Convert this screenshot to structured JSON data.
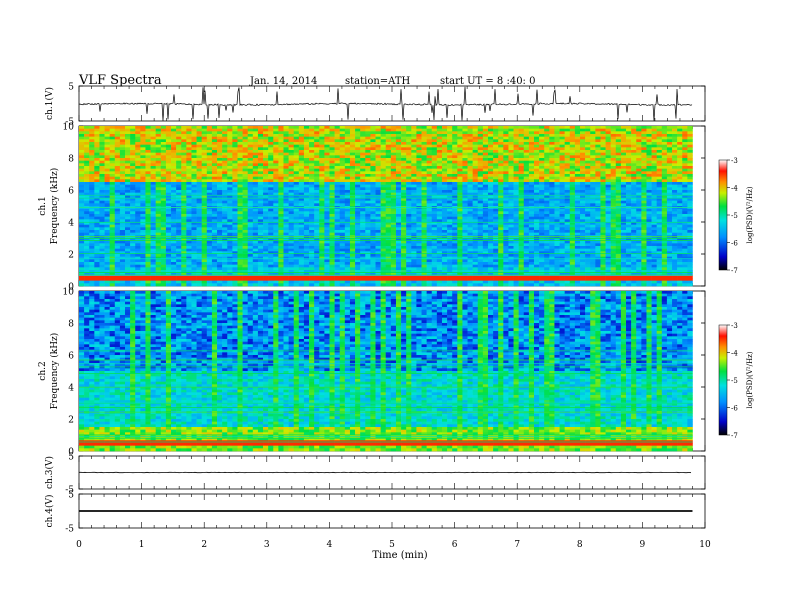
{
  "header": {
    "title": "VLF  Spectra",
    "date": "Jan. 14, 2014",
    "station": "station=ATH",
    "start": "start  UT  =    8 :40: 0"
  },
  "chart_data": [
    {
      "type": "line",
      "ylabel": "ch.1(V)",
      "ylim": [
        -5,
        5
      ],
      "yticks": [
        "5",
        "-5"
      ],
      "note": "noisy waveform centred near 0 V with short spikes"
    },
    {
      "type": "heatmap",
      "ylabel": "ch.1\nFrequency (kHz)",
      "ylim": [
        0,
        10
      ],
      "yticks": [
        "10",
        "8",
        "6",
        "4",
        "2",
        "0"
      ],
      "colorbar": {
        "label": "log(PSD)(V²/Hz)",
        "range": [
          -7,
          -3
        ],
        "ticks": [
          "-3",
          "-4",
          "-5",
          "-6",
          "-7"
        ]
      }
    },
    {
      "type": "heatmap",
      "ylabel": "ch.2\nFrequency (kHz)",
      "ylim": [
        0,
        10
      ],
      "yticks": [
        "10",
        "8",
        "6",
        "4",
        "2",
        "0"
      ],
      "colorbar": {
        "label": "log(PSD)(V²/Hz)",
        "range": [
          -7,
          -3
        ],
        "ticks": [
          "-3",
          "-4",
          "-5",
          "-6",
          "-7"
        ]
      }
    },
    {
      "type": "line",
      "ylabel": "ch.3(V)",
      "ylim": [
        -5,
        5
      ],
      "yticks": [
        "5",
        "-5"
      ],
      "note": "flat trace near 0 V"
    },
    {
      "type": "line",
      "ylabel": "ch.4(V)",
      "ylim": [
        -5,
        5
      ],
      "yticks": [
        "5",
        "-5"
      ],
      "note": "thick flat trace near 0 V"
    }
  ],
  "xaxis": {
    "label": "Time  (min)",
    "range": [
      0,
      10
    ],
    "ticks": [
      "0",
      "1",
      "2",
      "3",
      "4",
      "5",
      "6",
      "7",
      "8",
      "9",
      "10"
    ],
    "data_end": 9.8
  }
}
